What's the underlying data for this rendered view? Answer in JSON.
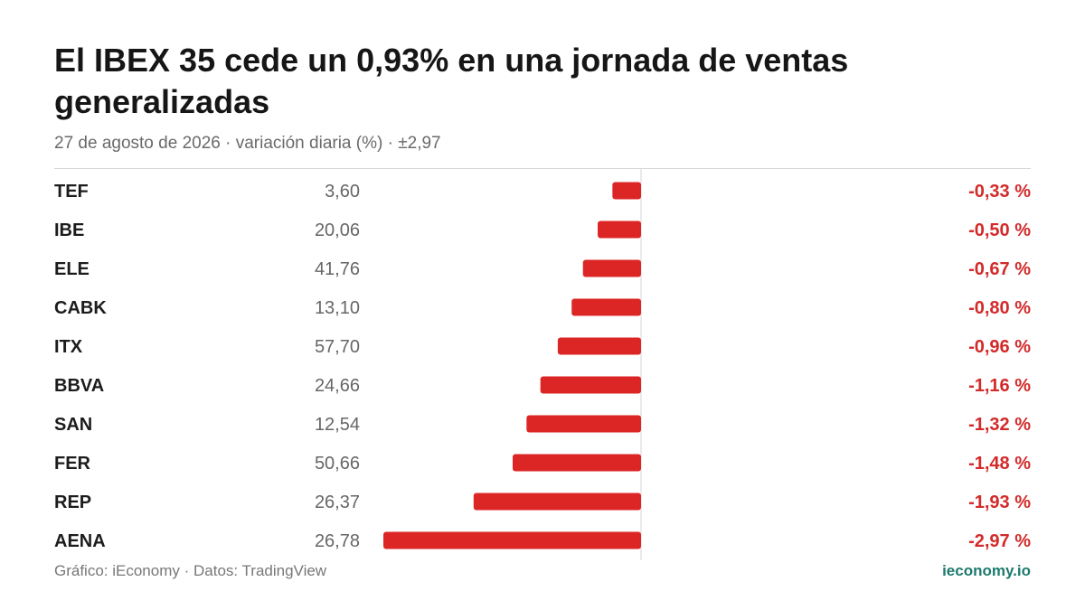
{
  "header": {
    "title": "El IBEX 35 cede un 0,93% en una jornada de ventas generalizadas",
    "subtitle": "27 de agosto de 2026 · variación diaria (%) · ±2,97"
  },
  "footer": {
    "source": "Gráfico: iEconomy · Datos: TradingView",
    "brand": "ieconomy.io"
  },
  "colors": {
    "bar": "#dc2626",
    "label": "#d32a2a",
    "axis": "#d6d6d6"
  },
  "chart_data": {
    "type": "bar",
    "orientation": "horizontal",
    "categories": [
      "TEF",
      "IBE",
      "ELE",
      "CABK",
      "ITX",
      "BBVA",
      "SAN",
      "FER",
      "REP",
      "AENA"
    ],
    "prices": [
      "3,60",
      "20,06",
      "41,76",
      "13,10",
      "57,70",
      "24,66",
      "12,54",
      "50,66",
      "26,37",
      "26,78"
    ],
    "values": [
      -0.33,
      -0.5,
      -0.67,
      -0.8,
      -0.96,
      -1.16,
      -1.32,
      -1.48,
      -1.93,
      -2.97
    ],
    "data_labels": [
      "-0,33 %",
      "-0,50 %",
      "-0,67 %",
      "-0,80 %",
      "-0,96 %",
      "-1,16 %",
      "-1,32 %",
      "-1,48 %",
      "-1,93 %",
      "-2,97 %"
    ],
    "xlim": [
      -2.97,
      2.97
    ],
    "legend": "none",
    "grid": false
  }
}
